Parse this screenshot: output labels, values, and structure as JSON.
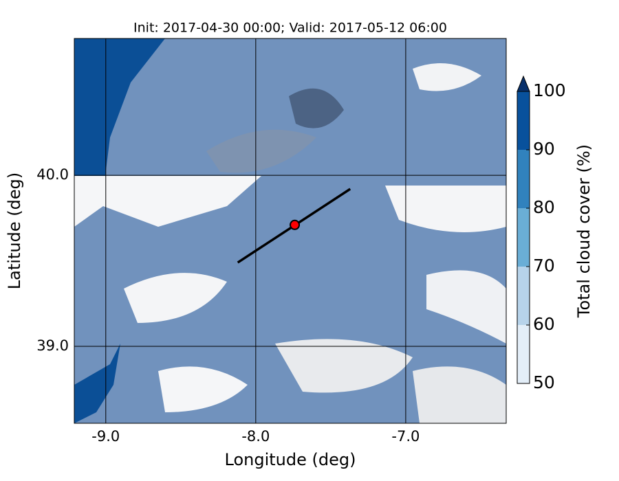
{
  "chart_data": {
    "type": "map",
    "title": "Init: 2017-04-30 00:00; Valid: 2017-05-12 06:00",
    "xlabel": "Longitude (deg)",
    "ylabel": "Latitude (deg)",
    "xlim": [
      -9.21,
      -6.33
    ],
    "ylim": [
      38.55,
      40.8
    ],
    "xticks": [
      {
        "value": -9,
        "label": "-9.0"
      },
      {
        "value": -8,
        "label": "-8.0"
      },
      {
        "value": -7,
        "label": "-7.0"
      }
    ],
    "yticks": [
      {
        "value": 39,
        "label": "39.0"
      },
      {
        "value": 40,
        "label": "40.0"
      }
    ],
    "grid": true,
    "point": {
      "lon": -7.74,
      "lat": 39.71,
      "color": "#ff0000"
    },
    "line": {
      "lon": [
        -8.12,
        -7.37
      ],
      "lat": [
        39.49,
        39.92
      ],
      "color": "#000000"
    },
    "colorbar": {
      "label": "Total cloud cover (%)",
      "lim": [
        50,
        100
      ],
      "ticks": [
        50,
        60,
        70,
        80,
        90,
        100
      ],
      "levels": [
        50,
        60,
        70,
        80,
        90,
        100
      ],
      "colors": [
        "#e3eef8",
        "#b7d3ea",
        "#6aaed6",
        "#3182bd",
        "#08519c"
      ],
      "extend_color": "#08306b"
    }
  }
}
